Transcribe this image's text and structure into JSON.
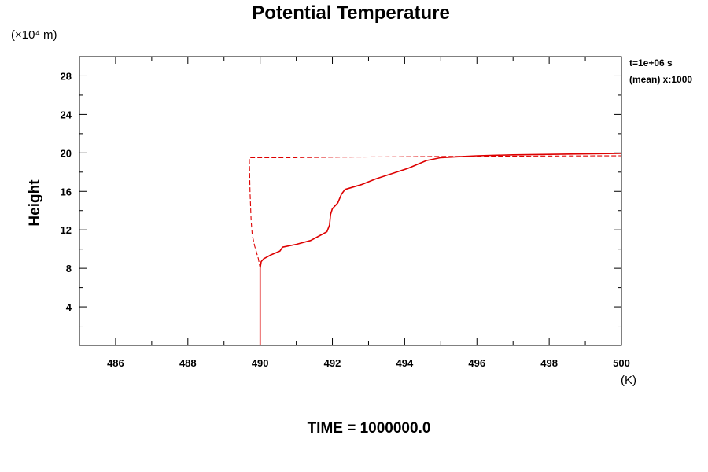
{
  "chart_data": {
    "type": "line",
    "title": "Potential Temperature",
    "ylabel": "Height",
    "yscale_note": "(×10⁴ m)",
    "xunit": "(K)",
    "xlim": [
      485,
      500
    ],
    "ylim": [
      0,
      30
    ],
    "xticks": [
      486,
      488,
      490,
      492,
      494,
      496,
      498,
      500
    ],
    "yticks": [
      4,
      8,
      12,
      16,
      20,
      24,
      28
    ],
    "grid": false,
    "annotations": [
      "t=1e+06 s",
      "(mean) x:1000"
    ],
    "footer": "TIME = 1000000.0",
    "series": [
      {
        "style": "solid",
        "color": "#dd0000",
        "x": [
          490.0,
          490.0,
          490.0,
          490.03,
          490.1,
          490.3,
          490.55,
          490.62,
          491.0,
          491.4,
          491.65,
          491.85,
          491.92,
          491.95,
          492.0,
          492.15,
          492.25,
          492.35,
          492.8,
          493.2,
          494.1,
          494.6,
          495.0,
          495.5,
          496.0,
          497.0,
          498.0,
          499.0,
          500.0
        ],
        "y": [
          0.0,
          5.0,
          8.0,
          8.7,
          9.0,
          9.4,
          9.8,
          10.2,
          10.5,
          10.9,
          11.4,
          11.8,
          12.5,
          13.6,
          14.2,
          14.8,
          15.7,
          16.2,
          16.7,
          17.3,
          18.4,
          19.2,
          19.5,
          19.6,
          19.7,
          19.8,
          19.85,
          19.9,
          19.95
        ]
      },
      {
        "style": "dashed",
        "color": "#dd0000",
        "x": [
          490.0,
          490.0,
          489.95,
          489.85,
          489.78,
          489.75,
          489.72,
          489.7,
          491.0,
          492.0,
          494.0,
          496.0,
          500.0
        ],
        "y": [
          5.0,
          8.0,
          9.0,
          10.3,
          11.5,
          13.0,
          16.0,
          19.5,
          19.5,
          19.55,
          19.6,
          19.65,
          19.7
        ]
      }
    ]
  }
}
